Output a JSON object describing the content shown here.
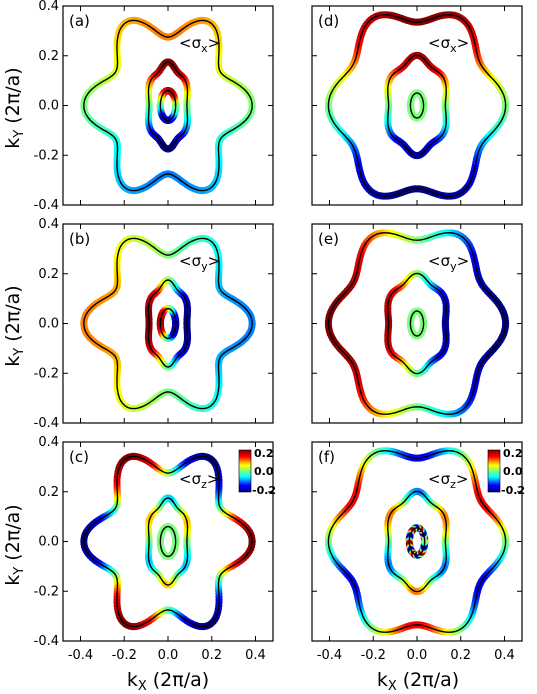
{
  "colormap": [
    "#00007f",
    "#0000ff",
    "#00ffff",
    "#7fff7f",
    "#ffff00",
    "#ff0000",
    "#7f0000"
  ],
  "chart_data": {
    "type": "scatter",
    "description_free": true,
    "xlabel_main": "k",
    "xlabel_sub": "X",
    "xlabel_unit": " (2π/a)",
    "ylabel_main": "k",
    "ylabel_sub": "Y",
    "ylabel_unit": " (2π/a)",
    "xlim": [
      -0.48,
      0.48
    ],
    "ylim": [
      -0.4,
      0.4
    ],
    "x_ticks": [
      "-0.4",
      "-0.2",
      "0.0",
      "0.2",
      "0.4"
    ],
    "y_ticks": [
      "0.4",
      "0.2",
      "0.0",
      "-0.2",
      "-0.4"
    ],
    "colorbar": {
      "max": "0.2",
      "mid": "0.0",
      "min": "-0.2"
    },
    "panels": [
      {
        "tag": "(a)",
        "component": "x",
        "label_pre": "<σ",
        "label_sub": "x",
        "label_post": ">",
        "fermi_surfaces": {
          "outer": {
            "star_radius": 0.33,
            "star_amp": 0.055,
            "phase_deg": 90,
            "color_rule": "sin",
            "amp": 0.5
          },
          "middle": {
            "radius_x": 0.08,
            "radius_y": 0.165,
            "shape": "hexagon",
            "color_rule": "sin",
            "amp": 1.0
          },
          "inner": {
            "radius_x": 0.035,
            "radius_y": 0.06,
            "color_rule": "sin",
            "amp": 0.9
          }
        }
      },
      {
        "tag": "(b)",
        "component": "y",
        "label_pre": "<σ",
        "label_sub": "y",
        "label_post": ">",
        "fermi_surfaces": {
          "outer": {
            "star_radius": 0.33,
            "star_amp": 0.055,
            "phase_deg": 90,
            "color_rule": "-cos",
            "amp": 0.5
          },
          "middle": {
            "radius_x": 0.08,
            "radius_y": 0.165,
            "shape": "hexagon",
            "color_rule": "-cos",
            "amp": 1.0
          },
          "inner": {
            "radius_x": 0.035,
            "radius_y": 0.06,
            "color_rule": "-cos",
            "amp": 0.9
          }
        }
      },
      {
        "tag": "(c)",
        "component": "z",
        "label_pre": "<σ",
        "label_sub": "z",
        "label_post": ">",
        "fermi_surfaces": {
          "outer": {
            "star_radius": 0.33,
            "star_amp": 0.055,
            "phase_deg": 90,
            "color_rule": "cos3",
            "amp": 1.0
          },
          "middle": {
            "radius_x": 0.08,
            "radius_y": 0.165,
            "shape": "hexagon",
            "color_rule": "sin3",
            "amp": 0.4
          },
          "inner": {
            "radius_x": 0.035,
            "radius_y": 0.06,
            "color_rule": "zero",
            "amp": 0.0
          }
        }
      },
      {
        "tag": "(d)",
        "component": "x",
        "label_pre": "<σ",
        "label_sub": "x",
        "label_post": ">",
        "fermi_surfaces": {
          "outer": {
            "star_radius": 0.37,
            "star_amp": 0.035,
            "phase_deg": 90,
            "color_rule": "sin",
            "amp": 1.0
          },
          "middle": {
            "radius_x": 0.12,
            "radius_y": 0.19,
            "shape": "hexagon",
            "color_rule": "sin",
            "amp": 0.9
          },
          "inner": {
            "radius_x": 0.03,
            "radius_y": 0.05,
            "color_rule": "zero",
            "amp": 0.0
          }
        }
      },
      {
        "tag": "(e)",
        "component": "y",
        "label_pre": "<σ",
        "label_sub": "y",
        "label_post": ">",
        "fermi_surfaces": {
          "outer": {
            "star_radius": 0.37,
            "star_amp": 0.035,
            "phase_deg": 90,
            "color_rule": "-cos",
            "amp": 1.0
          },
          "middle": {
            "radius_x": 0.12,
            "radius_y": 0.19,
            "shape": "hexagon",
            "color_rule": "-cos",
            "amp": 0.9
          },
          "inner": {
            "radius_x": 0.03,
            "radius_y": 0.05,
            "color_rule": "zero",
            "amp": 0.0
          }
        }
      },
      {
        "tag": "(f)",
        "component": "z",
        "label_pre": "<σ",
        "label_sub": "z",
        "label_post": ">",
        "fermi_surfaces": {
          "outer": {
            "star_radius": 0.37,
            "star_amp": 0.035,
            "phase_deg": 90,
            "color_rule": "sin3",
            "amp": 0.7
          },
          "middle": {
            "radius_x": 0.12,
            "radius_y": 0.19,
            "shape": "hexagon",
            "color_rule": "sin3",
            "amp": 0.5
          },
          "inner": {
            "radius_x": 0.035,
            "radius_y": 0.055,
            "color_rule": "sin6",
            "amp": 1.0
          }
        }
      }
    ]
  }
}
